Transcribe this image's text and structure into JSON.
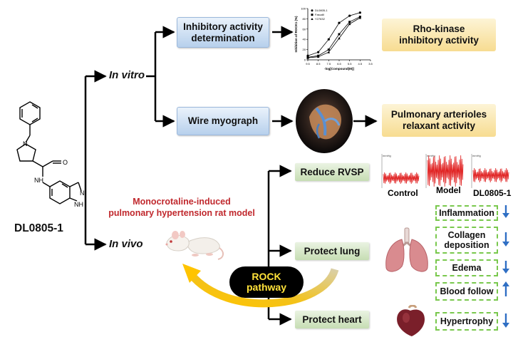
{
  "compound": {
    "name": "DL0805-1",
    "nh_label": "NH",
    "o_label": "O",
    "n_label": "N",
    "nh2_label": "N",
    "h_label": "H",
    "hn_label": "NH"
  },
  "branches": {
    "in_vitro": "In vitro",
    "in_vivo": "In vivo"
  },
  "in_vitro": {
    "assay1": "Inhibitory activity determination",
    "assay1_line1": "Inhibitory activity",
    "assay1_line2": "determination",
    "assay2": "Wire myograph",
    "result1_line1": "Rho-kinase",
    "result1_line2": "inhibitory activity",
    "result2_line1": "Pulmonary arterioles",
    "result2_line2": "relaxant activity"
  },
  "chart_data": {
    "type": "line",
    "ylabel": "Inhibition of ROCK1 (%)",
    "xlabel": "-log[Compound(M)]",
    "legend": [
      "DL0805-1",
      "Fasudil",
      "Y27632"
    ],
    "x_ticks": [
      "9.5",
      "8.5",
      "7.5",
      "6.5",
      "5.5",
      "4.5",
      "3.5"
    ],
    "y_ticks": [
      "0",
      "20",
      "40",
      "60",
      "80",
      "100"
    ],
    "series": [
      {
        "name": "DL0805-1",
        "x": [
          9.5,
          8.5,
          7.5,
          6.5,
          5.5,
          4.5
        ],
        "values": [
          8,
          15,
          40,
          72,
          86,
          92
        ]
      },
      {
        "name": "Fasudil",
        "x": [
          9.5,
          8.5,
          7.5,
          6.5,
          5.5,
          4.5
        ],
        "values": [
          5,
          8,
          20,
          50,
          74,
          84
        ]
      },
      {
        "name": "Y27632",
        "x": [
          9.5,
          8.5,
          7.5,
          6.5,
          5.5,
          4.5
        ],
        "values": [
          4,
          6,
          15,
          42,
          70,
          82
        ]
      }
    ],
    "xlim": [
      9.5,
      3.5
    ],
    "ylim": [
      0,
      100
    ]
  },
  "in_vivo": {
    "model_line1": "Monocrotaline-induced",
    "model_line2": "pulmonary hypertension rat model",
    "rock_line1": "ROCK",
    "rock_line2": "pathway",
    "reduce_rvsp": "Reduce RVSP",
    "protect_lung": "Protect lung",
    "protect_heart": "Protect heart",
    "trace_labels": [
      "Control",
      "Model",
      "DL0805-1"
    ],
    "trace_axis": "mmHg",
    "lung_effects": [
      {
        "label": "Inflammation",
        "dir": "down"
      },
      {
        "label_line1": "Collagen",
        "label_line2": "deposition",
        "dir": "down"
      },
      {
        "label": "Edema",
        "dir": "down"
      },
      {
        "label": "Blood follow",
        "dir": "up"
      }
    ],
    "heart_effect": {
      "label": "Hypertrophy",
      "dir": "down"
    }
  },
  "colors": {
    "model_text": "#c0282d",
    "arrow_blue": "#2f6fc4",
    "dash_green": "#79c84d",
    "rock_bg": "#000000",
    "rock_text": "#ffe23a"
  }
}
